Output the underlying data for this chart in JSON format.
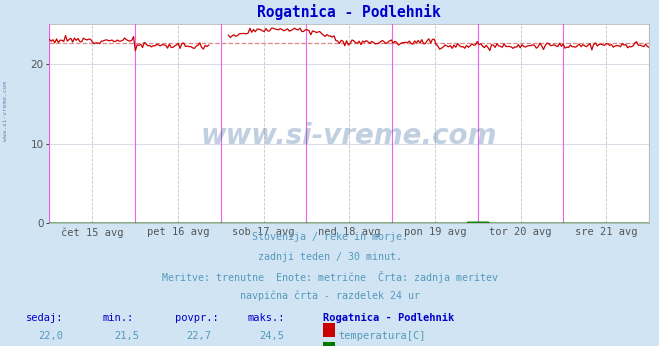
{
  "title": "Rogatnica - Podlehnik",
  "title_color": "#0000cc",
  "background_color": "#d0e4f4",
  "plot_background": "#ffffff",
  "grid_color": "#ddcccc",
  "grid_color2": "#ccccdd",
  "x_tick_labels": [
    "čet 15 avg",
    "pet 16 avg",
    "sob 17 avg",
    "ned 18 avg",
    "pon 19 avg",
    "tor 20 avg",
    "sre 21 avg"
  ],
  "y_ticks": [
    0,
    10,
    20
  ],
  "ylim": [
    0,
    25
  ],
  "n_points": 336,
  "temp_min": 21.5,
  "temp_max": 24.5,
  "temp_avg": 22.7,
  "temp_current": 22.0,
  "flow_min": 0.0,
  "flow_max": 0.3,
  "flow_avg": 0.1,
  "flow_current": 0.0,
  "temp_color": "#cc0000",
  "flow_color": "#007700",
  "avg_line_color": "#dd8888",
  "vline_solid_color": "#ee44ee",
  "vline_dashed_color": "#aaaaaa",
  "subtitle_lines": [
    "Slovenija / reke in morje.",
    "zadnji teden / 30 minut.",
    "Meritve: trenutne  Enote: metrične  Črta: zadnja meritev",
    "navpična črta - razdelek 24 ur"
  ],
  "subtitle_color": "#5599bb",
  "table_header_color": "#0000cc",
  "table_value_color": "#5599bb",
  "watermark": "www.si-vreme.com",
  "watermark_color": "#336699",
  "left_label": "www.si-vreme.com"
}
